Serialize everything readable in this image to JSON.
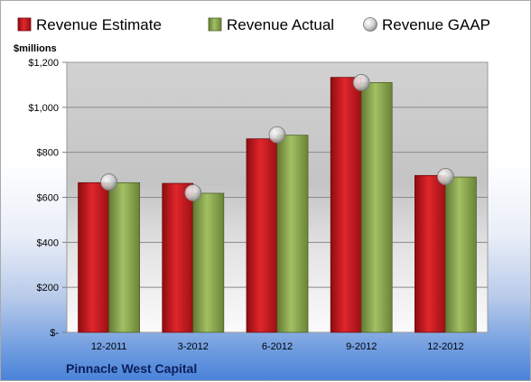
{
  "chart_data": {
    "type": "bar",
    "title": "",
    "ylabel": "$millions",
    "xlabel": "",
    "company": "Pinnacle West Capital",
    "categories": [
      "12-2011",
      "3-2012",
      "6-2012",
      "9-2012",
      "12-2012"
    ],
    "yticks": [
      "$-",
      "$200",
      "$400",
      "$600",
      "$800",
      "$1,000",
      "$1,200"
    ],
    "ylim": [
      0,
      1200
    ],
    "grid": true,
    "legend_position": "top",
    "series": [
      {
        "name": "Revenue Estimate",
        "kind": "bar",
        "color": "#c0161c",
        "values": [
          665,
          662,
          860,
          1133,
          697
        ]
      },
      {
        "name": "Revenue Actual",
        "kind": "bar",
        "color": "#8caa4e",
        "values": [
          665,
          618,
          876,
          1110,
          690
        ]
      },
      {
        "name": "Revenue GAAP",
        "kind": "marker",
        "color": "#c8c8c8",
        "values": [
          668,
          620,
          878,
          1110,
          692
        ]
      }
    ]
  }
}
